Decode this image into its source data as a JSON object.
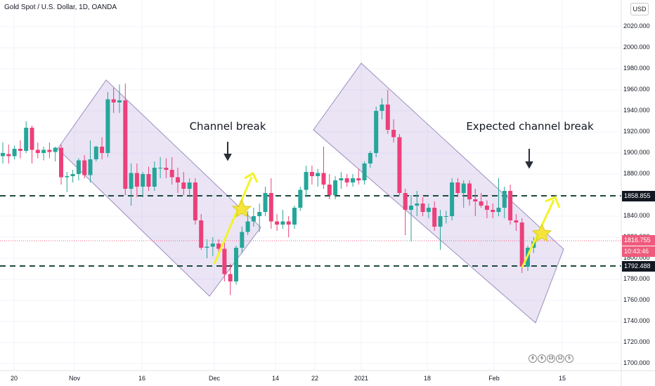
{
  "header": {
    "title": "Gold Spot / U.S. Dollar, 1D, OANDA",
    "currency": "USD"
  },
  "annotations": {
    "left": "Channel break",
    "right": "Expected channel break"
  },
  "events": [
    "8",
    "6",
    "13",
    "12",
    "5"
  ],
  "colors": {
    "up": "#26a69a",
    "down": "#ec407a",
    "channel": "#b39ddb",
    "arrow": "#f3f32a",
    "star": "#f5e53a",
    "level_line": "#1f4a3d"
  },
  "price_tags": {
    "upper_level": {
      "value": "1858.855",
      "bg": "#131722",
      "fg": "#ffffff"
    },
    "last_price": {
      "value": "1816.755",
      "bg": "#ef5b7c",
      "fg": "#ffffff"
    },
    "countdown": {
      "value": "10:43:46",
      "bg": "#ef5b7c",
      "fg": "#ffffff"
    },
    "lower_level": {
      "value": "1792.488",
      "bg": "#131722",
      "fg": "#ffffff"
    }
  },
  "chart_data": {
    "type": "candlestick",
    "title": "Gold Spot / U.S. Dollar, 1D, OANDA",
    "y_ticks": [
      1700,
      1720,
      1740,
      1760,
      1780,
      1800,
      1820,
      1840,
      1860,
      1880,
      1900,
      1920,
      1940,
      1960,
      1980,
      2000,
      2020
    ],
    "y_tick_labels": [
      "1700.000",
      "1720.000",
      "1740.000",
      "1760.000",
      "1780.000",
      "1800.000",
      "1820.000",
      "1840.000",
      "1860.000",
      "1880.000",
      "1900.000",
      "1920.000",
      "1940.000",
      "1960.000",
      "1980.000",
      "2000.000",
      "2020.000"
    ],
    "x_ticks": [
      "20",
      "Nov",
      "16",
      "Dec",
      "14",
      "22",
      "2021",
      "18",
      "Feb",
      "15"
    ],
    "horizontal_levels": [
      1858.855,
      1792.488
    ],
    "last_price": 1816.755,
    "candles": [
      {
        "o": 1897,
        "h": 1910,
        "l": 1890,
        "c": 1900
      },
      {
        "o": 1899,
        "h": 1908,
        "l": 1890,
        "c": 1897
      },
      {
        "o": 1897,
        "h": 1907,
        "l": 1894,
        "c": 1904
      },
      {
        "o": 1904,
        "h": 1912,
        "l": 1895,
        "c": 1902
      },
      {
        "o": 1902,
        "h": 1930,
        "l": 1900,
        "c": 1924
      },
      {
        "o": 1924,
        "h": 1926,
        "l": 1890,
        "c": 1903
      },
      {
        "o": 1903,
        "h": 1910,
        "l": 1895,
        "c": 1900
      },
      {
        "o": 1900,
        "h": 1906,
        "l": 1893,
        "c": 1903
      },
      {
        "o": 1903,
        "h": 1910,
        "l": 1895,
        "c": 1901
      },
      {
        "o": 1901,
        "h": 1906,
        "l": 1892,
        "c": 1905
      },
      {
        "o": 1905,
        "h": 1908,
        "l": 1870,
        "c": 1877
      },
      {
        "o": 1877,
        "h": 1882,
        "l": 1863,
        "c": 1878
      },
      {
        "o": 1878,
        "h": 1884,
        "l": 1872,
        "c": 1880
      },
      {
        "o": 1880,
        "h": 1895,
        "l": 1874,
        "c": 1893
      },
      {
        "o": 1893,
        "h": 1898,
        "l": 1876,
        "c": 1879
      },
      {
        "o": 1879,
        "h": 1912,
        "l": 1872,
        "c": 1894
      },
      {
        "o": 1894,
        "h": 1907,
        "l": 1892,
        "c": 1906
      },
      {
        "o": 1906,
        "h": 1915,
        "l": 1894,
        "c": 1900
      },
      {
        "o": 1900,
        "h": 1958,
        "l": 1896,
        "c": 1951
      },
      {
        "o": 1951,
        "h": 1962,
        "l": 1938,
        "c": 1948
      },
      {
        "o": 1948,
        "h": 1965,
        "l": 1938,
        "c": 1950
      },
      {
        "o": 1950,
        "h": 1966,
        "l": 1860,
        "c": 1866
      },
      {
        "o": 1866,
        "h": 1890,
        "l": 1850,
        "c": 1881
      },
      {
        "o": 1881,
        "h": 1890,
        "l": 1858,
        "c": 1868
      },
      {
        "o": 1868,
        "h": 1882,
        "l": 1858,
        "c": 1880
      },
      {
        "o": 1880,
        "h": 1887,
        "l": 1864,
        "c": 1868
      },
      {
        "o": 1868,
        "h": 1892,
        "l": 1864,
        "c": 1886
      },
      {
        "o": 1886,
        "h": 1896,
        "l": 1876,
        "c": 1886
      },
      {
        "o": 1886,
        "h": 1895,
        "l": 1876,
        "c": 1884
      },
      {
        "o": 1884,
        "h": 1896,
        "l": 1870,
        "c": 1877
      },
      {
        "o": 1877,
        "h": 1886,
        "l": 1862,
        "c": 1872
      },
      {
        "o": 1872,
        "h": 1882,
        "l": 1860,
        "c": 1866
      },
      {
        "o": 1866,
        "h": 1876,
        "l": 1858,
        "c": 1872
      },
      {
        "o": 1872,
        "h": 1876,
        "l": 1832,
        "c": 1836
      },
      {
        "o": 1836,
        "h": 1842,
        "l": 1808,
        "c": 1810
      },
      {
        "o": 1810,
        "h": 1818,
        "l": 1800,
        "c": 1811
      },
      {
        "o": 1811,
        "h": 1820,
        "l": 1802,
        "c": 1814
      },
      {
        "o": 1814,
        "h": 1818,
        "l": 1804,
        "c": 1809
      },
      {
        "o": 1809,
        "h": 1816,
        "l": 1778,
        "c": 1785
      },
      {
        "o": 1785,
        "h": 1795,
        "l": 1765,
        "c": 1778
      },
      {
        "o": 1778,
        "h": 1812,
        "l": 1775,
        "c": 1810
      },
      {
        "o": 1810,
        "h": 1830,
        "l": 1805,
        "c": 1825
      },
      {
        "o": 1825,
        "h": 1845,
        "l": 1822,
        "c": 1835
      },
      {
        "o": 1835,
        "h": 1848,
        "l": 1830,
        "c": 1840
      },
      {
        "o": 1840,
        "h": 1852,
        "l": 1825,
        "c": 1844
      },
      {
        "o": 1844,
        "h": 1868,
        "l": 1840,
        "c": 1862
      },
      {
        "o": 1862,
        "h": 1876,
        "l": 1828,
        "c": 1835
      },
      {
        "o": 1835,
        "h": 1842,
        "l": 1826,
        "c": 1832
      },
      {
        "o": 1832,
        "h": 1846,
        "l": 1828,
        "c": 1835
      },
      {
        "o": 1835,
        "h": 1840,
        "l": 1820,
        "c": 1832
      },
      {
        "o": 1832,
        "h": 1850,
        "l": 1828,
        "c": 1848
      },
      {
        "o": 1848,
        "h": 1868,
        "l": 1845,
        "c": 1865
      },
      {
        "o": 1865,
        "h": 1888,
        "l": 1858,
        "c": 1882
      },
      {
        "o": 1882,
        "h": 1888,
        "l": 1870,
        "c": 1878
      },
      {
        "o": 1878,
        "h": 1885,
        "l": 1868,
        "c": 1881
      },
      {
        "o": 1881,
        "h": 1906,
        "l": 1866,
        "c": 1870
      },
      {
        "o": 1870,
        "h": 1880,
        "l": 1856,
        "c": 1860
      },
      {
        "o": 1860,
        "h": 1878,
        "l": 1856,
        "c": 1874
      },
      {
        "o": 1874,
        "h": 1882,
        "l": 1866,
        "c": 1876
      },
      {
        "o": 1876,
        "h": 1880,
        "l": 1868,
        "c": 1872
      },
      {
        "o": 1872,
        "h": 1880,
        "l": 1868,
        "c": 1876
      },
      {
        "o": 1876,
        "h": 1885,
        "l": 1870,
        "c": 1874
      },
      {
        "o": 1874,
        "h": 1892,
        "l": 1870,
        "c": 1890
      },
      {
        "o": 1890,
        "h": 1902,
        "l": 1886,
        "c": 1900
      },
      {
        "o": 1900,
        "h": 1944,
        "l": 1896,
        "c": 1940
      },
      {
        "o": 1940,
        "h": 1952,
        "l": 1932,
        "c": 1946
      },
      {
        "o": 1946,
        "h": 1960,
        "l": 1918,
        "c": 1922
      },
      {
        "o": 1922,
        "h": 1932,
        "l": 1910,
        "c": 1915
      },
      {
        "o": 1915,
        "h": 1918,
        "l": 1860,
        "c": 1862
      },
      {
        "o": 1862,
        "h": 1866,
        "l": 1822,
        "c": 1846
      },
      {
        "o": 1846,
        "h": 1860,
        "l": 1816,
        "c": 1850
      },
      {
        "o": 1850,
        "h": 1864,
        "l": 1840,
        "c": 1852
      },
      {
        "o": 1852,
        "h": 1858,
        "l": 1840,
        "c": 1844
      },
      {
        "o": 1844,
        "h": 1852,
        "l": 1838,
        "c": 1848
      },
      {
        "o": 1848,
        "h": 1854,
        "l": 1826,
        "c": 1830
      },
      {
        "o": 1830,
        "h": 1846,
        "l": 1808,
        "c": 1840
      },
      {
        "o": 1840,
        "h": 1845,
        "l": 1833,
        "c": 1840
      },
      {
        "o": 1840,
        "h": 1876,
        "l": 1836,
        "c": 1872
      },
      {
        "o": 1872,
        "h": 1876,
        "l": 1858,
        "c": 1862
      },
      {
        "o": 1862,
        "h": 1874,
        "l": 1848,
        "c": 1871
      },
      {
        "o": 1871,
        "h": 1874,
        "l": 1850,
        "c": 1856
      },
      {
        "o": 1856,
        "h": 1866,
        "l": 1840,
        "c": 1854
      },
      {
        "o": 1854,
        "h": 1862,
        "l": 1848,
        "c": 1850
      },
      {
        "o": 1850,
        "h": 1855,
        "l": 1838,
        "c": 1846
      },
      {
        "o": 1846,
        "h": 1852,
        "l": 1838,
        "c": 1844
      },
      {
        "o": 1844,
        "h": 1876,
        "l": 1840,
        "c": 1848
      },
      {
        "o": 1848,
        "h": 1868,
        "l": 1838,
        "c": 1864
      },
      {
        "o": 1864,
        "h": 1870,
        "l": 1832,
        "c": 1836
      },
      {
        "o": 1836,
        "h": 1842,
        "l": 1826,
        "c": 1834
      },
      {
        "o": 1834,
        "h": 1838,
        "l": 1786,
        "c": 1792
      },
      {
        "o": 1792,
        "h": 1812,
        "l": 1788,
        "c": 1810
      },
      {
        "o": 1810,
        "h": 1820,
        "l": 1805,
        "c": 1816
      }
    ]
  }
}
